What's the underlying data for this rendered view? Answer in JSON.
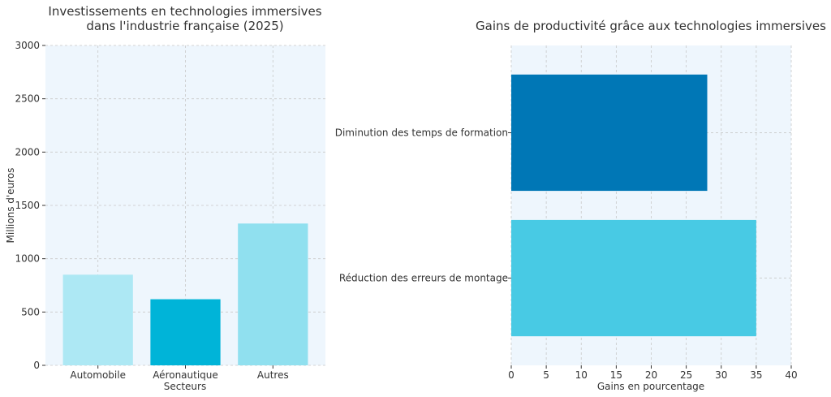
{
  "chart_data": [
    {
      "type": "bar",
      "title_lines": [
        "Investissements en technologies immersives",
        "dans l'industrie française (2025)"
      ],
      "xlabel": "Secteurs",
      "ylabel": "Millions d'euros",
      "categories": [
        "Automobile",
        "Aéronautique",
        "Autres"
      ],
      "values": [
        850,
        620,
        1330
      ],
      "colors": [
        "#ade8f4",
        "#00b4d8",
        "#90e0ef"
      ],
      "ylim": [
        0,
        3000
      ],
      "yticks": [
        0,
        500,
        1000,
        1500,
        2000,
        2500,
        3000
      ],
      "grid": true,
      "background": "#eef6fd"
    },
    {
      "type": "bar",
      "orientation": "horizontal",
      "title": "Gains de productivité grâce aux technologies immersives",
      "xlabel": "Gains en pourcentage",
      "ylabel": "",
      "categories": [
        "Diminution des temps de formation",
        "Réduction des erreurs de montage"
      ],
      "values": [
        28,
        35
      ],
      "colors": [
        "#0077b6",
        "#48cae4"
      ],
      "xlim": [
        0,
        40
      ],
      "xticks": [
        0,
        5,
        10,
        15,
        20,
        25,
        30,
        35,
        40
      ],
      "grid": true,
      "background": "#eef6fd"
    }
  ]
}
